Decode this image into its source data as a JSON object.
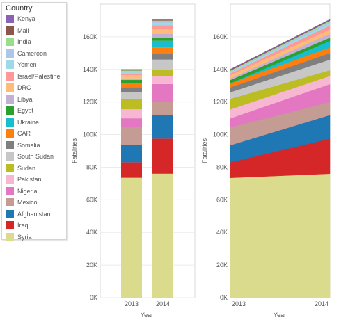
{
  "legend": {
    "title": "Country"
  },
  "countries": [
    {
      "name": "Kenya",
      "color": "#8a63b4"
    },
    {
      "name": "Mali",
      "color": "#8c564b"
    },
    {
      "name": "India",
      "color": "#98df8a"
    },
    {
      "name": "Cameroon",
      "color": "#aec7e8"
    },
    {
      "name": "Yemen",
      "color": "#9edae5"
    },
    {
      "name": "Israel/Palestine",
      "color": "#ff9896"
    },
    {
      "name": "DRC",
      "color": "#ffbb78"
    },
    {
      "name": "Libya",
      "color": "#c5b0d5"
    },
    {
      "name": "Egypt",
      "color": "#2ca02c"
    },
    {
      "name": "Ukraine",
      "color": "#17becf"
    },
    {
      "name": "CAR",
      "color": "#ff7f0e"
    },
    {
      "name": "Somalia",
      "color": "#7f7f7f"
    },
    {
      "name": "South Sudan",
      "color": "#c7c7c7"
    },
    {
      "name": "Sudan",
      "color": "#bcbd22"
    },
    {
      "name": "Pakistan",
      "color": "#f7b6d2"
    },
    {
      "name": "Nigeria",
      "color": "#e377c2"
    },
    {
      "name": "Mexico",
      "color": "#c49c94"
    },
    {
      "name": "Afghanistan",
      "color": "#1f77b4"
    },
    {
      "name": "Iraq",
      "color": "#d62728"
    },
    {
      "name": "Syria",
      "color": "#dbdb8d"
    }
  ],
  "chart_data": [
    {
      "type": "bar",
      "stacked": true,
      "categories": [
        "2013",
        "2014"
      ],
      "xlabel": "Year",
      "ylabel": "Fatalities",
      "ylim": [
        0,
        180000
      ],
      "yticks": [
        "0K",
        "20K",
        "40K",
        "60K",
        "80K",
        "100K",
        "120K",
        "140K",
        "160K"
      ],
      "series": [
        {
          "name": "Syria",
          "values": [
            73500,
            76000
          ]
        },
        {
          "name": "Iraq",
          "values": [
            9500,
            21500
          ]
        },
        {
          "name": "Afghanistan",
          "values": [
            10500,
            14500
          ]
        },
        {
          "name": "Mexico",
          "values": [
            11000,
            8000
          ]
        },
        {
          "name": "Nigeria",
          "values": [
            5500,
            11000
          ]
        },
        {
          "name": "Pakistan",
          "values": [
            5500,
            5000
          ]
        },
        {
          "name": "Sudan",
          "values": [
            6500,
            3500
          ]
        },
        {
          "name": "South Sudan",
          "values": [
            4000,
            6500
          ]
        },
        {
          "name": "Somalia",
          "values": [
            3000,
            4000
          ]
        },
        {
          "name": "CAR",
          "values": [
            2500,
            3500
          ]
        },
        {
          "name": "Ukraine",
          "values": [
            0,
            4000
          ]
        },
        {
          "name": "Egypt",
          "values": [
            2000,
            2000
          ]
        },
        {
          "name": "Libya",
          "values": [
            1000,
            2500
          ]
        },
        {
          "name": "DRC",
          "values": [
            2000,
            2500
          ]
        },
        {
          "name": "Israel/Palestine",
          "values": [
            1000,
            2500
          ]
        },
        {
          "name": "Yemen",
          "values": [
            700,
            1300
          ]
        },
        {
          "name": "Cameroon",
          "values": [
            500,
            1000
          ]
        },
        {
          "name": "India",
          "values": [
            600,
            600
          ]
        },
        {
          "name": "Mali",
          "values": [
            500,
            400
          ]
        },
        {
          "name": "Kenya",
          "values": [
            300,
            400
          ]
        }
      ]
    },
    {
      "type": "area",
      "stacked": true,
      "x": [
        "2013",
        "2014"
      ],
      "xlabel": "Year",
      "ylabel": "Fatalities",
      "ylim": [
        0,
        180000
      ],
      "yticks": [
        "0K",
        "20K",
        "40K",
        "60K",
        "80K",
        "100K",
        "120K",
        "140K",
        "160K"
      ],
      "series": [
        {
          "name": "Syria",
          "values": [
            73500,
            76000
          ]
        },
        {
          "name": "Iraq",
          "values": [
            9500,
            21500
          ]
        },
        {
          "name": "Afghanistan",
          "values": [
            10500,
            14500
          ]
        },
        {
          "name": "Mexico",
          "values": [
            11000,
            8000
          ]
        },
        {
          "name": "Nigeria",
          "values": [
            5500,
            11000
          ]
        },
        {
          "name": "Pakistan",
          "values": [
            5500,
            5000
          ]
        },
        {
          "name": "Sudan",
          "values": [
            6500,
            3500
          ]
        },
        {
          "name": "South Sudan",
          "values": [
            4000,
            6500
          ]
        },
        {
          "name": "Somalia",
          "values": [
            3000,
            4000
          ]
        },
        {
          "name": "CAR",
          "values": [
            2500,
            3500
          ]
        },
        {
          "name": "Ukraine",
          "values": [
            0,
            4000
          ]
        },
        {
          "name": "Egypt",
          "values": [
            2000,
            2000
          ]
        },
        {
          "name": "Libya",
          "values": [
            1000,
            2500
          ]
        },
        {
          "name": "DRC",
          "values": [
            2000,
            2500
          ]
        },
        {
          "name": "Israel/Palestine",
          "values": [
            1000,
            2500
          ]
        },
        {
          "name": "Yemen",
          "values": [
            700,
            1300
          ]
        },
        {
          "name": "Cameroon",
          "values": [
            500,
            1000
          ]
        },
        {
          "name": "India",
          "values": [
            600,
            600
          ]
        },
        {
          "name": "Mali",
          "values": [
            500,
            400
          ]
        },
        {
          "name": "Kenya",
          "values": [
            300,
            400
          ]
        }
      ]
    }
  ]
}
